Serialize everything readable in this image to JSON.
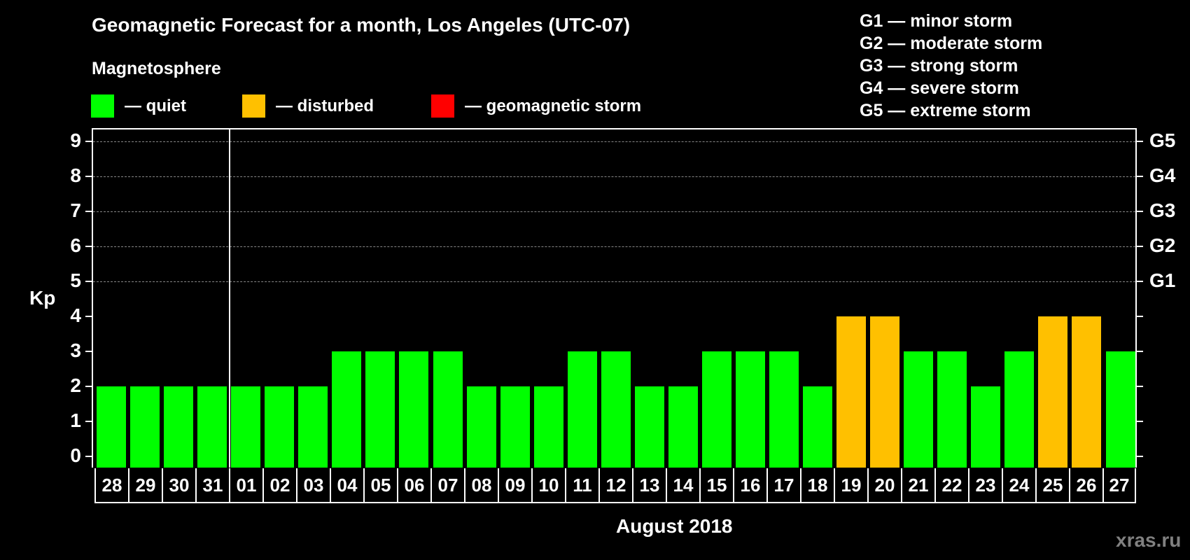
{
  "header": {
    "title": "Geomagnetic Forecast for a month, Los Angeles (UTC-07)",
    "subtitle": "Magnetosphere"
  },
  "legend": {
    "items": [
      {
        "label": "— quiet",
        "color": "#00ff00"
      },
      {
        "label": "— disturbed",
        "color": "#ffc000"
      },
      {
        "label": "— geomagnetic storm",
        "color": "#ff0000"
      }
    ]
  },
  "storm_scale": [
    "G1 — minor storm",
    "G2 — moderate storm",
    "G3 — strong storm",
    "G4 — severe storm",
    "G5 — extreme storm"
  ],
  "axis": {
    "ylabel": "Kp",
    "yticks": [
      "0",
      "1",
      "2",
      "3",
      "4",
      "5",
      "6",
      "7",
      "8",
      "9"
    ],
    "right_labels": {
      "5": "G1",
      "6": "G2",
      "7": "G3",
      "8": "G4",
      "9": "G5"
    },
    "month_label": "August 2018"
  },
  "watermark": "xras.ru",
  "chart_data": {
    "type": "bar",
    "title": "Geomagnetic Forecast for a month, Los Angeles (UTC-07)",
    "xlabel": "August 2018",
    "ylabel": "Kp",
    "ylim": [
      0,
      9
    ],
    "grid": "horizontal dashed at Kp 5-9",
    "categories": [
      "28",
      "29",
      "30",
      "31",
      "01",
      "02",
      "03",
      "04",
      "05",
      "06",
      "07",
      "08",
      "09",
      "10",
      "11",
      "12",
      "13",
      "14",
      "15",
      "16",
      "17",
      "18",
      "19",
      "20",
      "21",
      "22",
      "23",
      "24",
      "25",
      "26",
      "27"
    ],
    "values": [
      2,
      2,
      2,
      2,
      2,
      2,
      2,
      3,
      3,
      3,
      3,
      2,
      2,
      2,
      3,
      3,
      2,
      2,
      3,
      3,
      3,
      2,
      4,
      4,
      3,
      3,
      2,
      3,
      4,
      4,
      3
    ],
    "status": [
      "quiet",
      "quiet",
      "quiet",
      "quiet",
      "quiet",
      "quiet",
      "quiet",
      "quiet",
      "quiet",
      "quiet",
      "quiet",
      "quiet",
      "quiet",
      "quiet",
      "quiet",
      "quiet",
      "quiet",
      "quiet",
      "quiet",
      "quiet",
      "quiet",
      "quiet",
      "disturbed",
      "disturbed",
      "quiet",
      "quiet",
      "quiet",
      "quiet",
      "disturbed",
      "disturbed",
      "quiet"
    ],
    "colors": {
      "quiet": "#00ff00",
      "disturbed": "#ffc000",
      "storm": "#ff0000"
    },
    "legend": [
      "quiet",
      "disturbed",
      "geomagnetic storm"
    ],
    "right_axis": [
      "G1 (Kp5)",
      "G2 (Kp6)",
      "G3 (Kp7)",
      "G4 (Kp8)",
      "G5 (Kp9)"
    ],
    "month_boundary_after": "31"
  }
}
